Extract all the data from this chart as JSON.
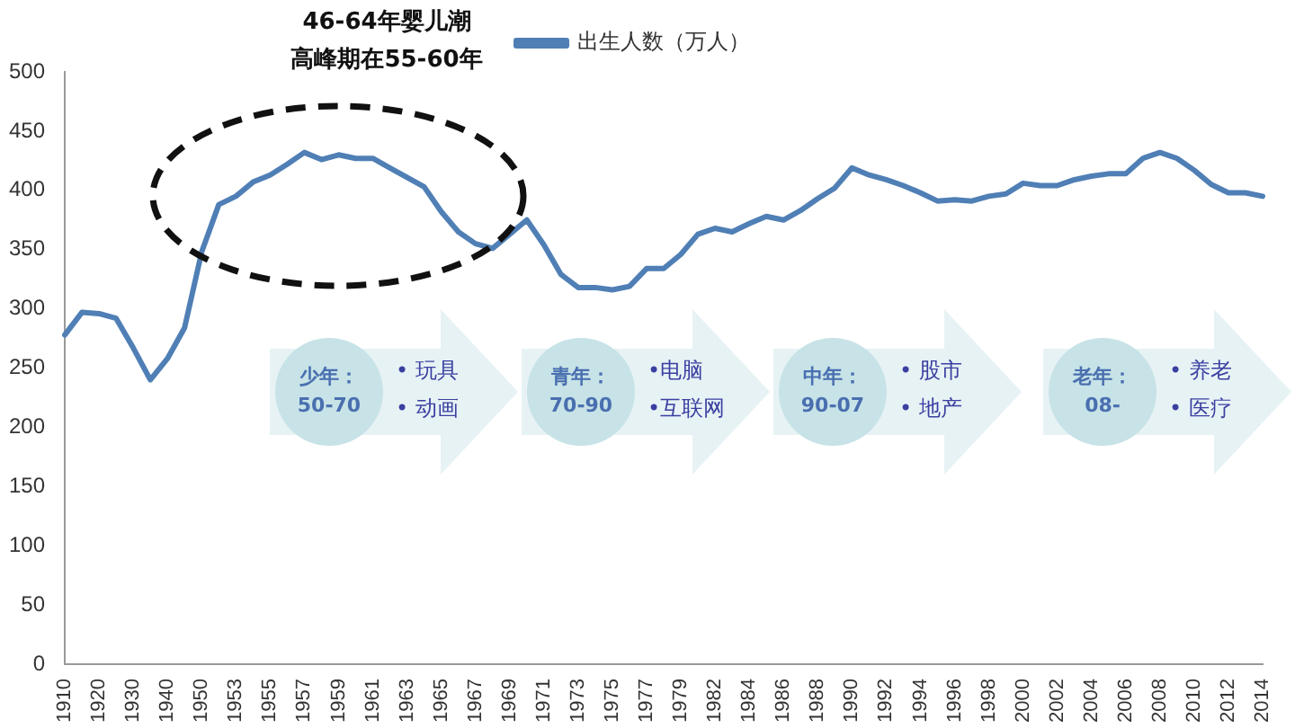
{
  "chart_data": {
    "type": "line",
    "annotations": [
      "46-64年婴儿潮",
      "高峰期在55-60年",
      "少年：",
      "50-70",
      "• 玩具",
      "• 动画",
      "青年：",
      "70-90",
      "•电脑",
      "•互联网",
      "中年：",
      "90-07",
      "• 股市",
      "• 地产",
      "老年：",
      "08-",
      "• 养老",
      "• 医疗"
    ],
    "categories": [
      "1910",
      null,
      "1920",
      null,
      "1930",
      null,
      "1940",
      null,
      "1950",
      null,
      "1953",
      null,
      "1955",
      null,
      "1957",
      null,
      "1959",
      null,
      "1961",
      null,
      "1963",
      null,
      "1965",
      null,
      "1967",
      null,
      "1969",
      null,
      "1971",
      null,
      "1973",
      null,
      "1975",
      null,
      "1977",
      null,
      "1979",
      null,
      "1982",
      null,
      "1984",
      null,
      "1986",
      null,
      "1988",
      null,
      "1990",
      null,
      "1992",
      null,
      "1994",
      null,
      "1996",
      null,
      "1998",
      null,
      "2000",
      null,
      "2002",
      null,
      "2004",
      null,
      "2006",
      null,
      "2008",
      null,
      "2010",
      null,
      "2012",
      null,
      "2014"
    ],
    "series": [
      {
        "name": "出生人数（万人）",
        "color": "#4f7fb5",
        "values": [
          278,
          297,
          296,
          292,
          267,
          240,
          258,
          284,
          348,
          388,
          395,
          407,
          413,
          422,
          432,
          426,
          430,
          427,
          427,
          419,
          411,
          403,
          382,
          365,
          355,
          351,
          363,
          375,
          354,
          329,
          318,
          318,
          316,
          319,
          334,
          334,
          346,
          363,
          368,
          365,
          372,
          378,
          375,
          383,
          393,
          402,
          419,
          413,
          409,
          404,
          398,
          391,
          392,
          391,
          395,
          397,
          406,
          404,
          404,
          409,
          412,
          414,
          414,
          427,
          432,
          427,
          417,
          405,
          398,
          398,
          395
        ]
      }
    ],
    "ylim": [
      0,
      500
    ],
    "yticks": [
      0,
      50,
      100,
      150,
      200,
      250,
      300,
      350,
      400,
      450,
      500
    ],
    "grid": false,
    "legend": "top",
    "marker": "none",
    "line_style": "solid"
  }
}
